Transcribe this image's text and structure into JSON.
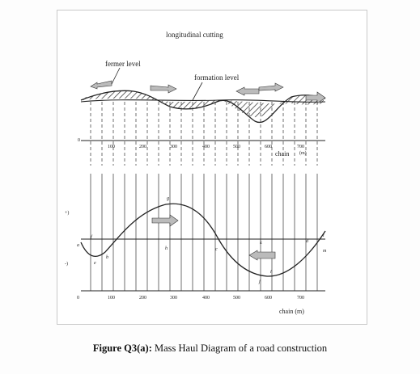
{
  "labels": {
    "title": "longitudinal cutting",
    "former_level": "fermer level",
    "formation_level": "formation level",
    "chain_top": "chain",
    "chain_top_unit": "(m)",
    "chain_bottom": "chain (m)",
    "plus": "+)",
    "minus": "-)",
    "zero_top": "0",
    "zero_bottom": "0"
  },
  "ticks_top": [
    "100",
    "200",
    "300",
    "400",
    "500",
    "600",
    "700"
  ],
  "ticks_bottom": [
    "100",
    "200",
    "300",
    "400",
    "500",
    "600",
    "700"
  ],
  "points": [
    "a",
    "b",
    "c",
    "d",
    "e",
    "f",
    "g",
    "h",
    "i",
    "j",
    "k",
    "l",
    "m"
  ],
  "caption": {
    "prefix": "Figure Q3(a):",
    "text": " Mass Haul Diagram of a road construction"
  },
  "colors": {
    "line": "#222222",
    "hatch": "#555555",
    "arrow_fill": "#bbbbbb"
  }
}
